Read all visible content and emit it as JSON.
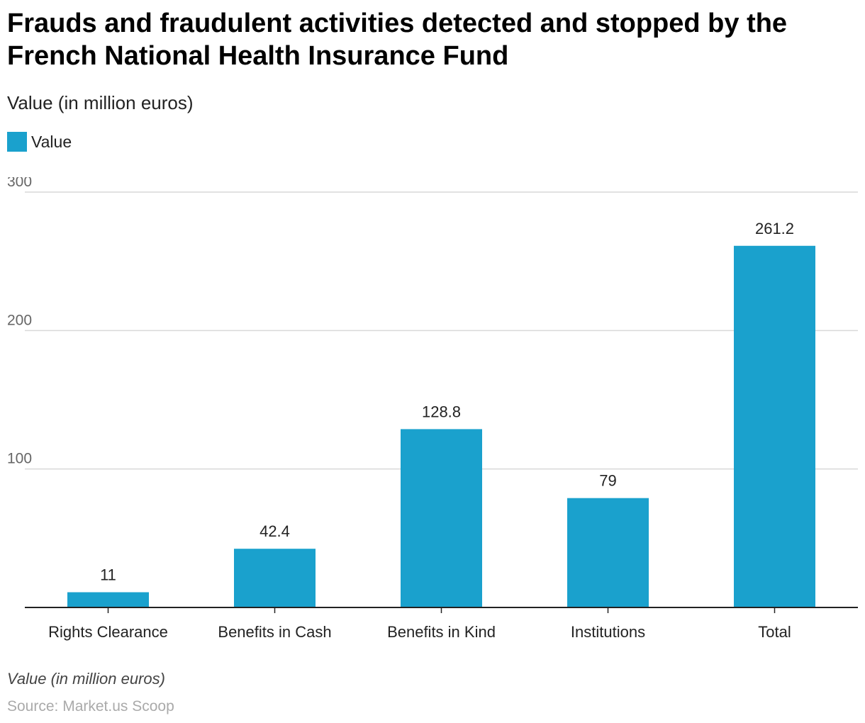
{
  "title": "Frauds and fraudulent activities detected and stopped by the French National Health Insurance Fund",
  "subtitle": "Value (in million euros)",
  "legend": {
    "label": "Value",
    "color": "#1aa1cd"
  },
  "footnote": "Value (in million euros)",
  "source": "Source: Market.us Scoop",
  "chart_data": {
    "type": "bar",
    "categories": [
      "Rights Clearance",
      "Benefits in Cash",
      "Benefits in Kind",
      "Institutions",
      "Total"
    ],
    "series": [
      {
        "name": "Value",
        "values": [
          11,
          42.4,
          128.8,
          79,
          261.2
        ],
        "color": "#1aa1cd"
      }
    ],
    "data_labels": [
      "11",
      "42.4",
      "128.8",
      "79",
      "261.2"
    ],
    "yticks": [
      100,
      200,
      300
    ],
    "ylim": [
      0,
      300
    ],
    "grid": true,
    "legend_position": "top-left"
  }
}
